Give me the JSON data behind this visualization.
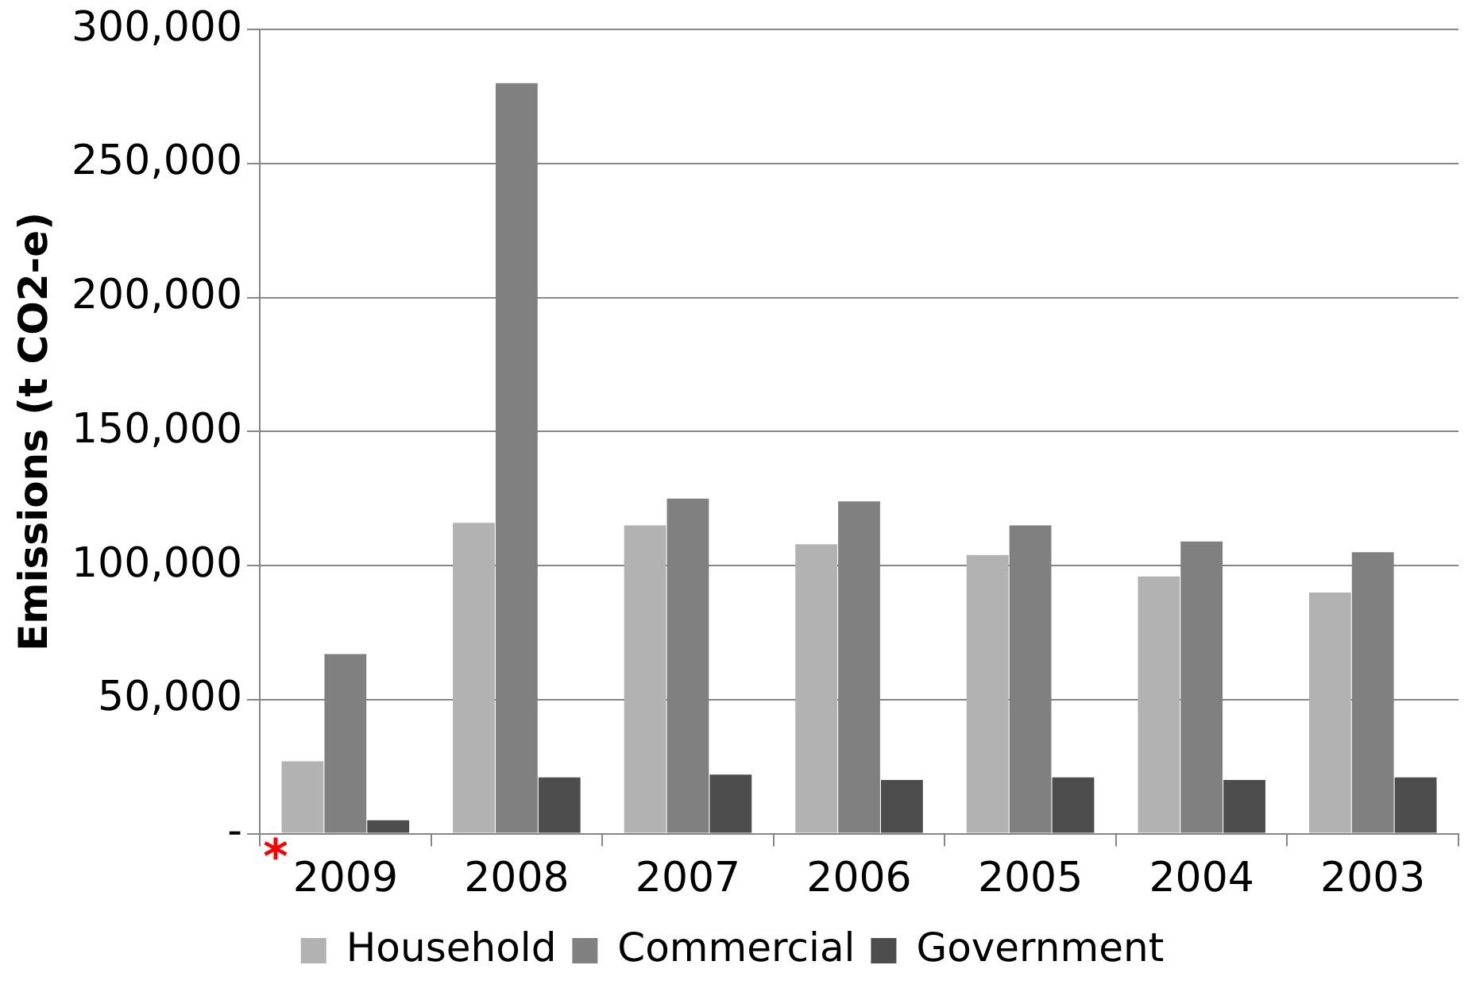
{
  "chart_data": {
    "type": "bar",
    "ylabel": "Emissions (t CO2-e)",
    "categories": [
      "2009",
      "2008",
      "2007",
      "2006",
      "2005",
      "2004",
      "2003"
    ],
    "series": [
      {
        "name": "Household",
        "color": "#b2b2b2",
        "values": [
          27000,
          116000,
          115000,
          108000,
          104000,
          96000,
          90000
        ]
      },
      {
        "name": "Commercial",
        "color": "#808080",
        "values": [
          67000,
          280000,
          125000,
          124000,
          115000,
          109000,
          105000
        ]
      },
      {
        "name": "Government",
        "color": "#4d4d4d",
        "values": [
          5000,
          21000,
          22000,
          20000,
          21000,
          20000,
          21000
        ]
      }
    ],
    "ylim": [
      0,
      300000
    ],
    "yticks": [
      {
        "value": 0,
        "label": "-"
      },
      {
        "value": 50000,
        "label": "50,000"
      },
      {
        "value": 100000,
        "label": "100,000"
      },
      {
        "value": 150000,
        "label": "150,000"
      },
      {
        "value": 200000,
        "label": "200,000"
      },
      {
        "value": 250000,
        "label": "250,000"
      },
      {
        "value": 300000,
        "label": "300,000"
      }
    ],
    "grid": "y",
    "legend": "bottom",
    "annotations": [
      "*"
    ]
  }
}
